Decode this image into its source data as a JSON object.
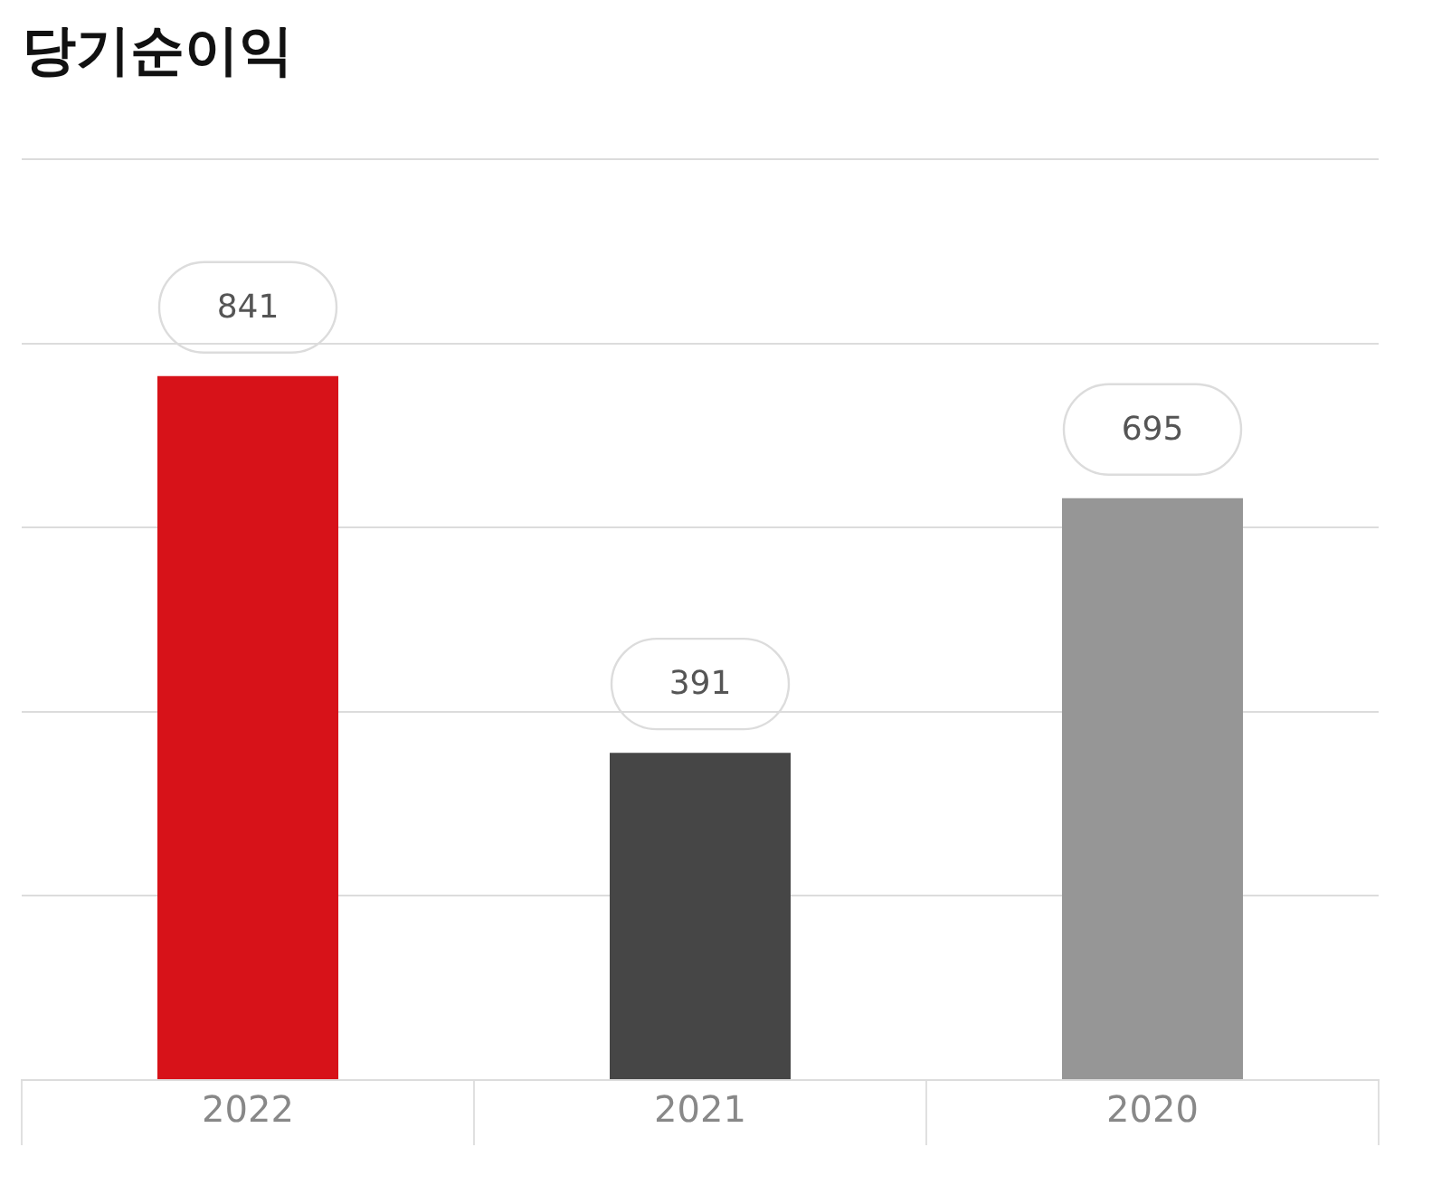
{
  "chart_data": {
    "type": "bar",
    "title": "당기순이익",
    "categories": [
      "2022",
      "2021",
      "2020"
    ],
    "values": [
      841,
      391,
      695
    ],
    "colors": [
      "#d71219",
      "#464646",
      "#969696"
    ],
    "ylim": [
      0,
      1100
    ],
    "yticks": [
      {
        "value": 0,
        "label": null
      },
      {
        "value": 220,
        "label": null
      },
      {
        "value": 440,
        "label": null
      },
      {
        "value": 660,
        "label": null
      },
      {
        "value": 880,
        "label": null
      },
      {
        "value": 1100,
        "label": null
      }
    ],
    "tick_labels": "x",
    "grid": "y",
    "data_labels": true
  }
}
